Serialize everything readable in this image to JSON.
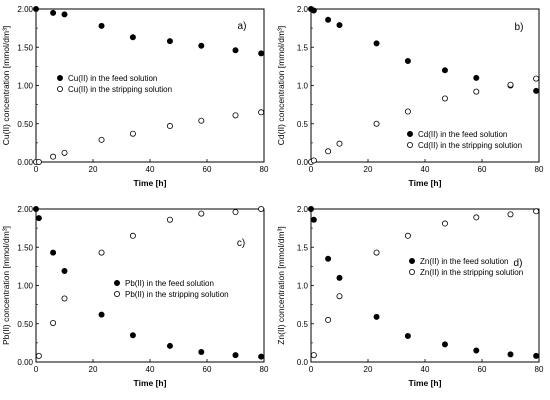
{
  "chart_data": [
    {
      "type": "scatter",
      "panel_label": "a)",
      "xlabel": "Time [h]",
      "ylabel": "Cu(II) concentration [mmol/dm³]",
      "xlim": [
        0,
        80
      ],
      "ylim": [
        0,
        2
      ],
      "xticks": [
        "0",
        "20",
        "40",
        "60",
        "80"
      ],
      "yticks": [
        "0.00",
        "0.50",
        "1.00",
        "1.50",
        "2.00"
      ],
      "legend_position": "center-left",
      "series": [
        {
          "name": "Cu(II) in the feed solution",
          "marker": "filled",
          "x": [
            0,
            6,
            10,
            23,
            34,
            47,
            58,
            70,
            79
          ],
          "y": [
            2.0,
            1.95,
            1.93,
            1.78,
            1.63,
            1.58,
            1.52,
            1.46,
            1.42
          ]
        },
        {
          "name": "Cu(II) in the stripping solution",
          "marker": "open",
          "x": [
            0,
            1,
            6,
            10,
            23,
            34,
            47,
            58,
            70,
            79
          ],
          "y": [
            0.0,
            0.0,
            0.07,
            0.12,
            0.29,
            0.37,
            0.47,
            0.54,
            0.61,
            0.65
          ]
        }
      ]
    },
    {
      "type": "scatter",
      "panel_label": "b)",
      "xlabel": "Time [h]",
      "ylabel": "Cd(II) concentration [mmol/dm³]",
      "xlim": [
        0,
        80
      ],
      "ylim": [
        0,
        2
      ],
      "xticks": [
        "0",
        "20",
        "40",
        "60",
        "80"
      ],
      "yticks": [
        "0.0",
        "0.5",
        "1.0",
        "1.5",
        "2.0"
      ],
      "legend_position": "bottom-right",
      "series": [
        {
          "name": "Cd(II) in the feed solution",
          "marker": "filled",
          "x": [
            0,
            1,
            6,
            10,
            23,
            34,
            47,
            58,
            70,
            79
          ],
          "y": [
            2.0,
            1.98,
            1.86,
            1.79,
            1.55,
            1.32,
            1.2,
            1.1,
            1.0,
            0.93
          ]
        },
        {
          "name": "Cd(II) in the stripping solution",
          "marker": "open",
          "x": [
            0,
            1,
            6,
            10,
            23,
            34,
            47,
            58,
            70,
            79
          ],
          "y": [
            0.0,
            0.02,
            0.14,
            0.24,
            0.5,
            0.66,
            0.83,
            0.92,
            1.01,
            1.09
          ]
        }
      ]
    },
    {
      "type": "scatter",
      "panel_label": "c)",
      "xlabel": "Time [h]",
      "ylabel": "Pb(II) concentration [mmol/dm³]",
      "xlim": [
        0,
        80
      ],
      "ylim": [
        0,
        2
      ],
      "xticks": [
        "0",
        "20",
        "40",
        "60",
        "80"
      ],
      "yticks": [
        "0.00",
        "0.50",
        "1.00",
        "1.50",
        "2.00"
      ],
      "legend_position": "center-right",
      "series": [
        {
          "name": "Pb(II) in the feed solution",
          "marker": "filled",
          "x": [
            0,
            1,
            6,
            10,
            23,
            34,
            47,
            58,
            70,
            79
          ],
          "y": [
            2.0,
            1.88,
            1.43,
            1.19,
            0.62,
            0.35,
            0.21,
            0.13,
            0.09,
            0.07
          ]
        },
        {
          "name": "Pb(II) in the stripping solution",
          "marker": "open",
          "x": [
            1,
            6,
            10,
            23,
            34,
            47,
            58,
            70,
            79
          ],
          "y": [
            0.08,
            0.51,
            0.83,
            1.43,
            1.65,
            1.86,
            1.94,
            1.96,
            2.0
          ]
        }
      ]
    },
    {
      "type": "scatter",
      "panel_label": "d)",
      "xlabel": "Time [h]",
      "ylabel": "Zn(II) concentration [mmol/dm³]",
      "xlim": [
        0,
        80
      ],
      "ylim": [
        0,
        2
      ],
      "xticks": [
        "0",
        "20",
        "40",
        "60",
        "80"
      ],
      "yticks": [
        "0.0",
        "0.5",
        "1.0",
        "1.5",
        "2.0"
      ],
      "legend_position": "center-right",
      "series": [
        {
          "name": "Zn(II) in the feed solution",
          "marker": "filled",
          "x": [
            0,
            1,
            6,
            10,
            23,
            34,
            47,
            58,
            70,
            79
          ],
          "y": [
            2.0,
            1.86,
            1.35,
            1.1,
            0.59,
            0.34,
            0.23,
            0.15,
            0.1,
            0.08
          ]
        },
        {
          "name": "Zn(II) in the stripping solution",
          "marker": "open",
          "x": [
            1,
            6,
            10,
            23,
            34,
            47,
            58,
            70,
            79
          ],
          "y": [
            0.09,
            0.55,
            0.86,
            1.43,
            1.65,
            1.81,
            1.89,
            1.93,
            1.97
          ]
        }
      ]
    }
  ]
}
